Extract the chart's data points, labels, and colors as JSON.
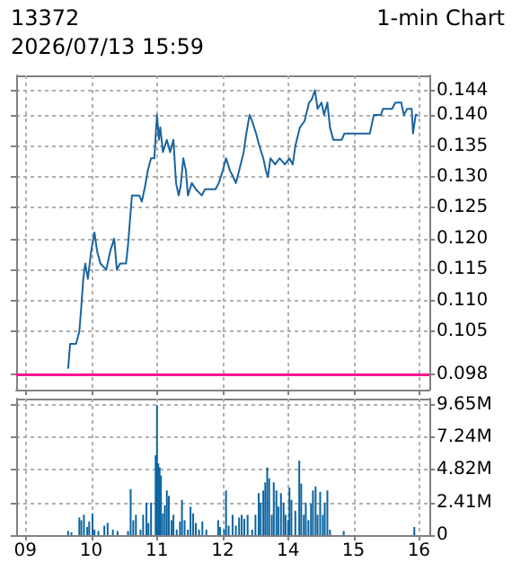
{
  "chart_data": [
    {
      "type": "line",
      "title": "13372",
      "annotations": [
        "2026/07/13 15:59"
      ],
      "xlim": [
        8.86,
        12
      ],
      "xticks": [
        9,
        10,
        11,
        12
      ],
      "ylim": [
        0.0956,
        0.1464
      ],
      "yticks": [
        0.098,
        0.105,
        0.11,
        0.115,
        0.12,
        0.125,
        0.13,
        0.135,
        0.14,
        0.144
      ],
      "grid": true,
      "tick_labels": false,
      "ref_lines": [
        {
          "axis": "y",
          "value": 0.098,
          "label": null,
          "color": "#ff1493"
        }
      ],
      "series": [
        {
          "color": "#1a64a0",
          "x": [
            9.65,
            9.68,
            9.77,
            9.82,
            9.85,
            9.88,
            9.91,
            9.95,
            10.0,
            10.05,
            10.09,
            10.14,
            10.23,
            10.29,
            10.35,
            10.39,
            10.44,
            10.53,
            10.56,
            10.62,
            10.73,
            10.77,
            10.82,
            10.86,
            10.91,
            10.96,
            11.0,
            11.03,
            11.05,
            11.09,
            11.15,
            11.2,
            11.25,
            11.29,
            11.33,
            11.36,
            11.4,
            11.44,
            11.47,
            11.53,
            11.59,
            11.68,
            11.73,
            11.89,
            11.94,
            12.0
          ],
          "values": [
            0.099,
            0.103,
            0.103,
            0.105,
            0.109,
            0.1135,
            0.116,
            0.1135,
            0.118,
            0.121,
            0.118,
            0.116,
            0.115,
            0.118,
            0.12,
            0.115,
            0.116,
            0.116,
            0.119,
            0.127,
            0.127,
            0.126,
            0.1285,
            0.131,
            0.133,
            0.133,
            0.14,
            0.136,
            0.138,
            0.134,
            0.136,
            0.134,
            0.136,
            0.129,
            0.127,
            0.1285,
            0.133,
            0.131,
            0.127,
            0.129,
            0.128,
            0.127,
            0.128,
            0.128,
            0.129,
            0.131
          ]
        }
      ]
    },
    {
      "type": "line",
      "subtitle": "1-min Chart",
      "xlim": [
        13,
        16.16
      ],
      "xticks": [
        14,
        15,
        16
      ],
      "ylim": [
        0.0956,
        0.1464
      ],
      "yticks": [
        {
          "value": 0.098,
          "label": "0.098"
        },
        {
          "value": 0.105,
          "label": "0.105"
        },
        {
          "value": 0.11,
          "label": "0.110"
        },
        {
          "value": 0.115,
          "label": "0.115"
        },
        {
          "value": 0.12,
          "label": "0.120"
        },
        {
          "value": 0.125,
          "label": "0.125"
        },
        {
          "value": 0.13,
          "label": "0.130"
        },
        {
          "value": 0.135,
          "label": "0.135"
        },
        {
          "value": 0.14,
          "label": "0.140"
        },
        {
          "value": 0.144,
          "label": "0.144"
        }
      ],
      "grid": true,
      "tick_labels": "y",
      "ref_lines": [
        {
          "axis": "y",
          "value": 0.098,
          "label": null,
          "color": "#ff1493"
        }
      ],
      "series": [
        {
          "color": "#1a64a0",
          "x": [
            13.0,
            13.05,
            13.11,
            13.16,
            13.2,
            13.25,
            13.32,
            13.36,
            13.41,
            13.45,
            13.51,
            13.56,
            13.62,
            13.66,
            13.69,
            13.73,
            13.8,
            13.87,
            13.95,
            14.02,
            14.07,
            14.11,
            14.18,
            14.25,
            14.32,
            14.36,
            14.41,
            14.45,
            14.51,
            14.55,
            14.6,
            14.64,
            14.69,
            14.82,
            14.86,
            15.25,
            15.31,
            15.42,
            15.45,
            15.59,
            15.64,
            15.73,
            15.77,
            15.82,
            15.89,
            15.91,
            15.95,
            15.98
          ],
          "values": [
            0.131,
            0.133,
            0.131,
            0.13,
            0.129,
            0.131,
            0.134,
            0.137,
            0.14,
            0.139,
            0.137,
            0.135,
            0.133,
            0.131,
            0.13,
            0.133,
            0.132,
            0.133,
            0.132,
            0.133,
            0.132,
            0.135,
            0.138,
            0.139,
            0.142,
            0.1425,
            0.144,
            0.141,
            0.142,
            0.14,
            0.142,
            0.138,
            0.136,
            0.136,
            0.137,
            0.137,
            0.14,
            0.14,
            0.141,
            0.141,
            0.142,
            0.142,
            0.14,
            0.141,
            0.141,
            0.137,
            0.14,
            0.14
          ]
        }
      ]
    },
    {
      "type": "bar",
      "xlim": [
        8.86,
        12
      ],
      "xticks": [
        {
          "value": 9,
          "label": "09"
        },
        10,
        11,
        12
      ],
      "ylim": [
        0,
        10.09
      ],
      "yticks": [
        0,
        2.41,
        4.82,
        7.24,
        9.65
      ],
      "grid": true,
      "tick_labels": "x",
      "series": [
        {
          "color": "#0a64a0",
          "x": [
            9.65,
            9.7,
            9.82,
            9.85,
            9.89,
            9.94,
            9.97,
            10.02,
            10.05,
            10.11,
            10.2,
            10.25,
            10.33,
            10.4,
            10.56,
            10.6,
            10.64,
            10.68,
            10.75,
            10.79,
            10.84,
            10.87,
            10.91,
            10.95,
            10.96,
            10.98,
            11.0,
            11.02,
            11.04,
            11.06,
            11.09,
            11.12,
            11.15,
            11.18,
            11.22,
            11.25,
            11.3,
            11.35,
            11.38,
            11.42,
            11.47,
            11.51,
            11.55,
            11.59,
            11.64,
            11.69,
            11.75,
            11.93,
            11.96
          ],
          "values": [
            0.3,
            0.2,
            1.3,
            1.1,
            1.5,
            0.6,
            1.0,
            1.6,
            0.4,
            0.3,
            0.7,
            0.9,
            0.4,
            0.3,
            0.3,
            3.4,
            1.1,
            1.5,
            0.4,
            1.5,
            2.4,
            0.9,
            2.4,
            null,
            null,
            5.9,
            9.6,
            5.3,
            5.0,
            4.4,
            1.6,
            2.2,
            3.3,
            2.9,
            1.1,
            1.5,
            0.4,
            1.0,
            2.6,
            1.1,
            0.4,
            2.1,
            1.6,
            0.9,
            0.4,
            1.0,
            0.4,
            1.1,
            0.6
          ]
        }
      ]
    },
    {
      "type": "bar",
      "xlim": [
        13,
        16.16
      ],
      "xticks": [
        14,
        15,
        16
      ],
      "ylim": [
        0,
        10.09
      ],
      "yticks": [
        0,
        {
          "value": 2.41,
          "label": "2.41M"
        },
        {
          "value": 4.82,
          "label": "4.82M"
        },
        {
          "value": 7.24,
          "label": "7.24M"
        },
        {
          "value": 9.65,
          "label": "9.65M"
        }
      ],
      "grid": true,
      "series": [
        {
          "color": "#0a64a0",
          "x": [
            13.02,
            13.05,
            13.09,
            13.15,
            13.2,
            13.25,
            13.29,
            13.33,
            13.38,
            13.45,
            13.5,
            13.55,
            13.58,
            13.62,
            13.65,
            13.68,
            13.71,
            13.75,
            13.78,
            13.82,
            13.85,
            13.89,
            13.93,
            13.96,
            14.0,
            14.02,
            14.05,
            14.11,
            14.15,
            14.17,
            14.2,
            14.24,
            14.27,
            14.31,
            14.35,
            14.38,
            14.42,
            14.45,
            14.49,
            14.53,
            14.56,
            14.6,
            14.64,
            14.85,
            15.93
          ],
          "values": [
            0.4,
            3.3,
            0.7,
            1.5,
            0.7,
            1.3,
            1.5,
            1.2,
            1.5,
            0.4,
            1.5,
            3.1,
            2.4,
            3.3,
            3.9,
            5.0,
            4.2,
            1.5,
            3.9,
            3.3,
            2.1,
            3.1,
            2.4,
            1.5,
            1.1,
            3.5,
            2.6,
            1.8,
            null,
            5.5,
            3.8,
            1.5,
            2.4,
            1.1,
            2.3,
            3.3,
            3.6,
            1.5,
            3.2,
            1.5,
            2.4,
            3.3,
            0.4,
            0.3,
            0.6
          ]
        }
      ]
    }
  ]
}
